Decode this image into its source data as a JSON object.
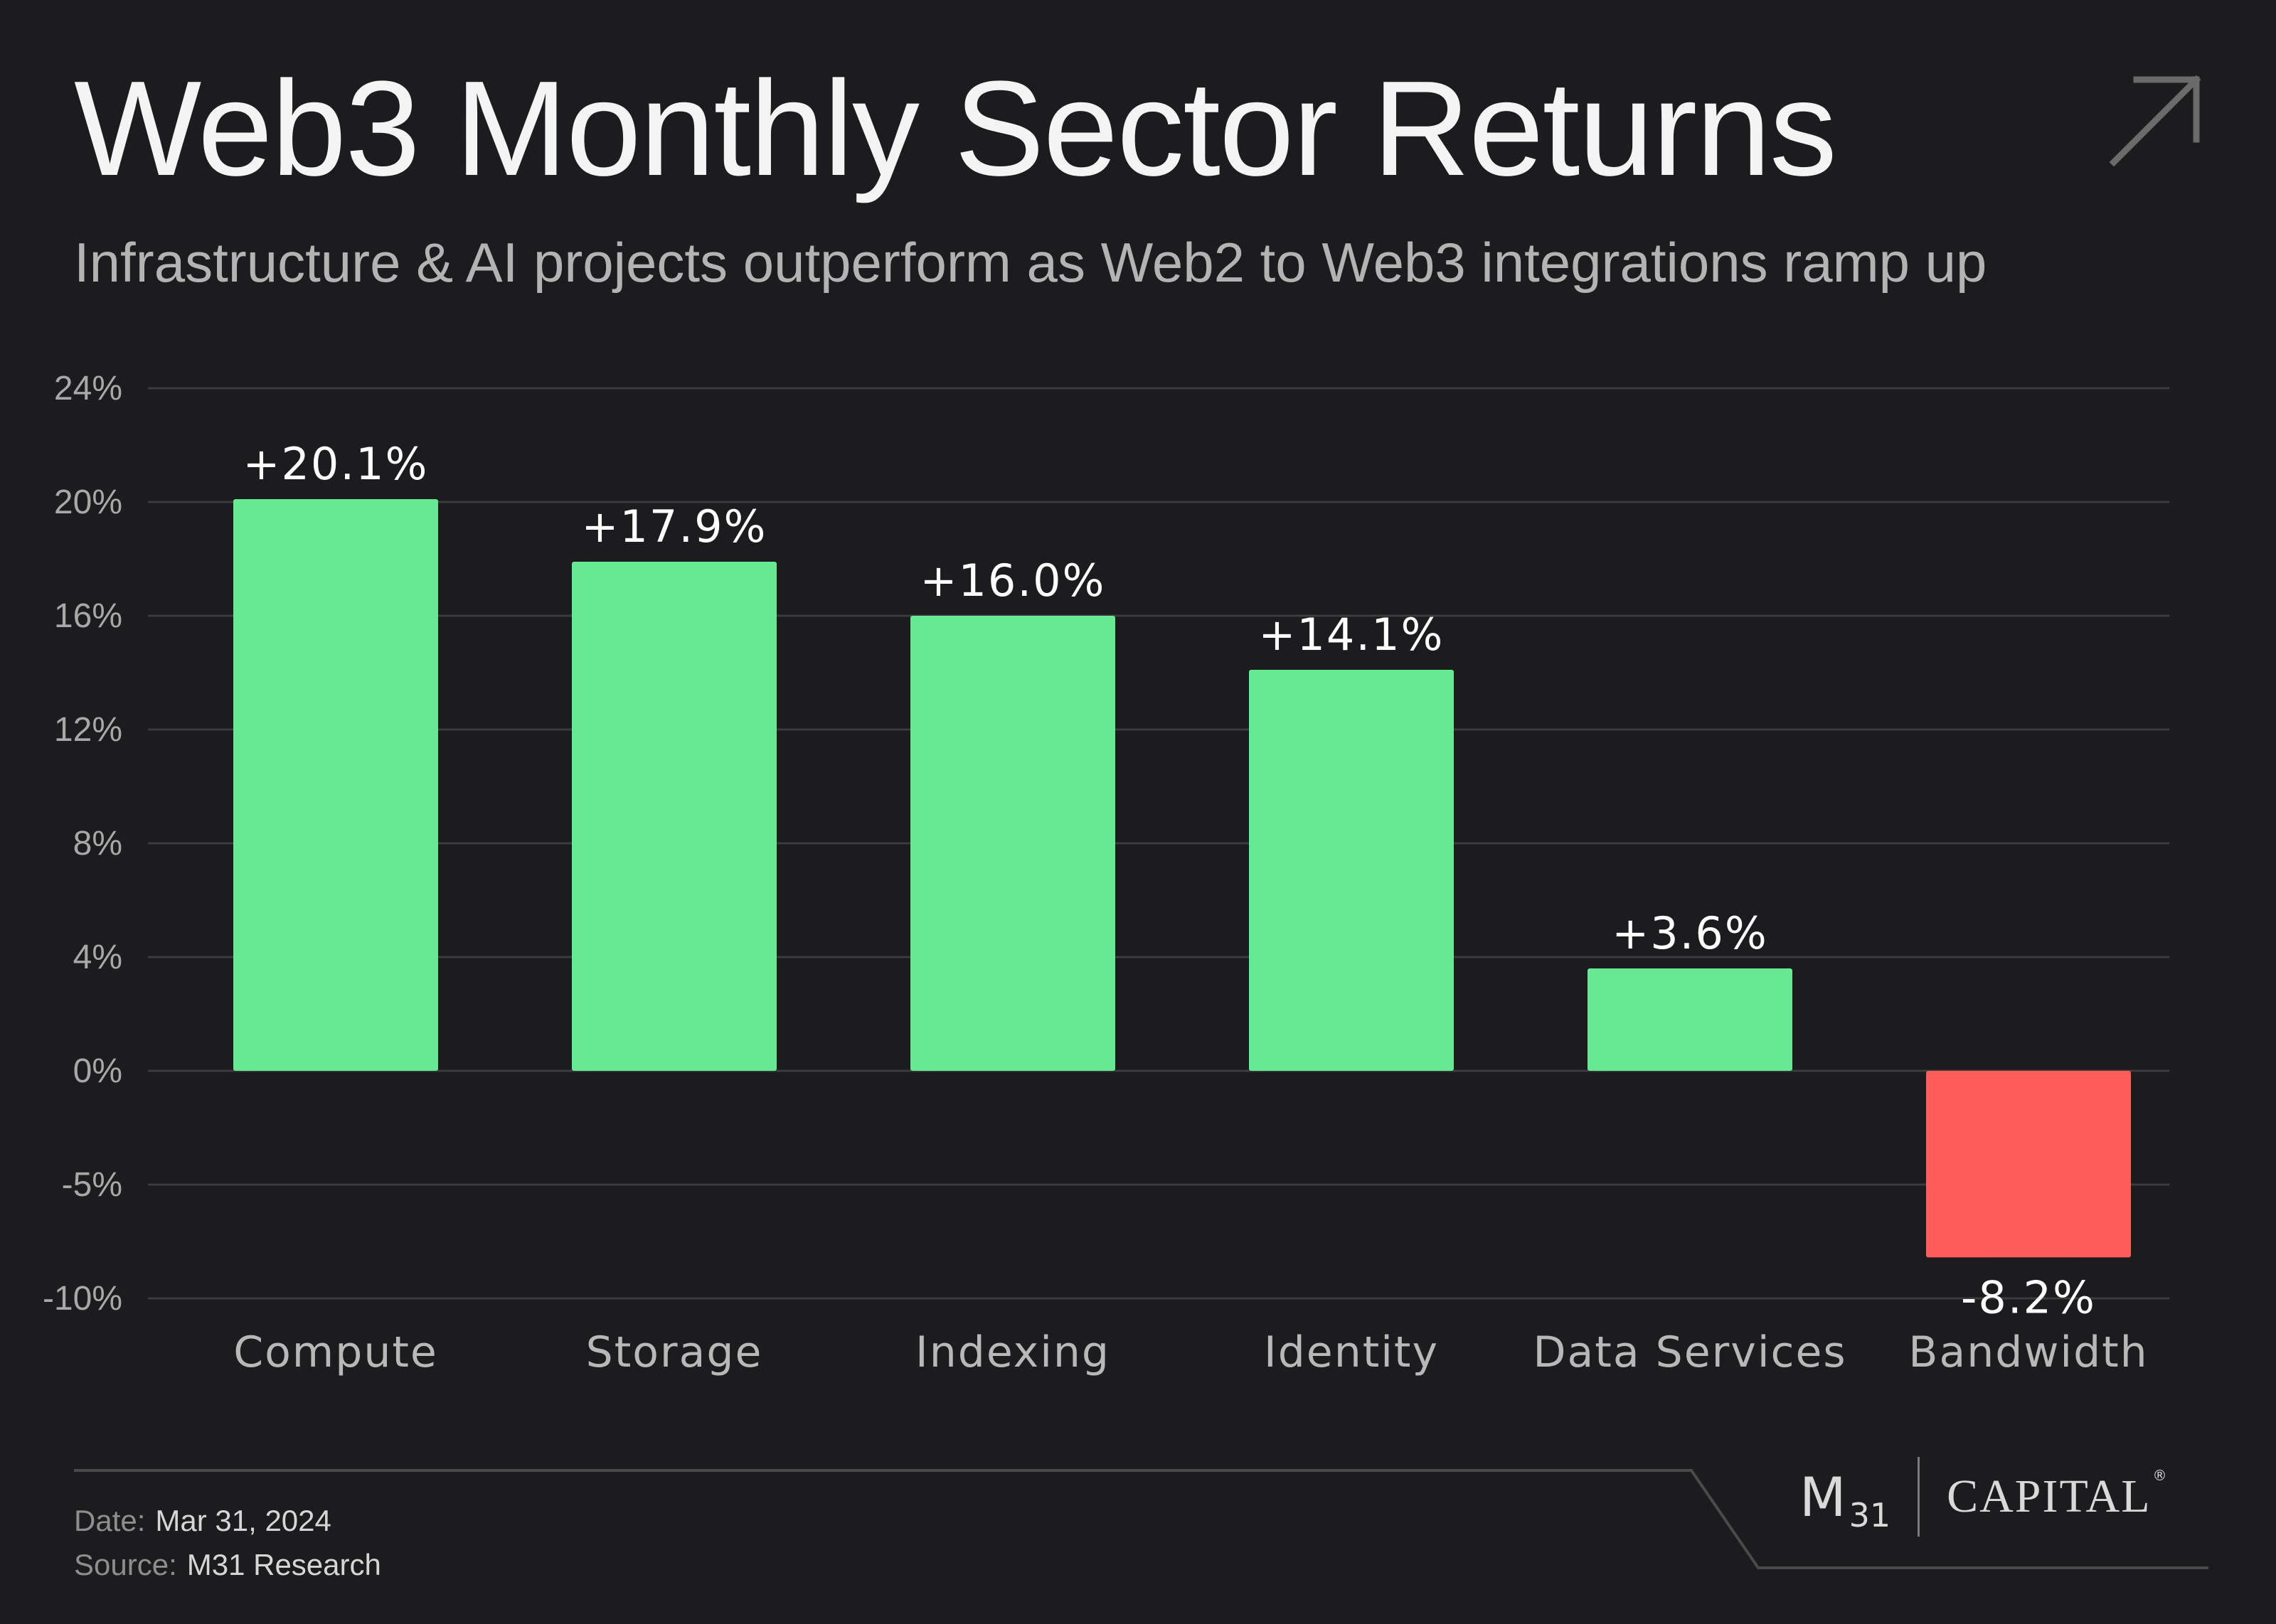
{
  "title": "Web3 Monthly Sector Returns",
  "subtitle": "Infrastructure & AI projects outperform as Web2 to Web3 integrations ramp up",
  "icons": {
    "corner": "arrow-up-right-icon"
  },
  "colors": {
    "background": "#1c1c1e",
    "positive": "#66e993",
    "negative": "#ff5c5c",
    "grid": "#3d3d3d",
    "axis_text": "#a8a8a8",
    "category_text": "#b8b8b8"
  },
  "chart_data": {
    "type": "bar",
    "title": "Web3 Monthly Sector Returns",
    "subtitle": "Infrastructure & AI projects outperform as Web2 to Web3 integrations ramp up",
    "categories": [
      "Compute",
      "Storage",
      "Indexing",
      "Identity",
      "Data Services",
      "Bandwidth"
    ],
    "values": [
      20.1,
      17.9,
      16.0,
      14.1,
      3.6,
      -8.2
    ],
    "data_labels": [
      "+20.1%",
      "+17.9%",
      "+16.0%",
      "+14.1%",
      "+3.6%",
      "-8.2%"
    ],
    "yticks": [
      24,
      20,
      16,
      12,
      8,
      4,
      0,
      -5,
      -10
    ],
    "ytick_labels": [
      "24%",
      "20%",
      "16%",
      "12%",
      "8%",
      "4%",
      "0%",
      "-5%",
      "-10%"
    ],
    "ylim": [
      -10,
      24
    ],
    "grid": true,
    "legend": "none"
  },
  "footer": {
    "date_key": "Date:",
    "date_value": "Mar 31, 2024",
    "source_key": "Source:",
    "source_value": "M31 Research"
  },
  "logo": {
    "m": "M",
    "number": "31",
    "word": "CAPITAL",
    "mark": "®"
  }
}
